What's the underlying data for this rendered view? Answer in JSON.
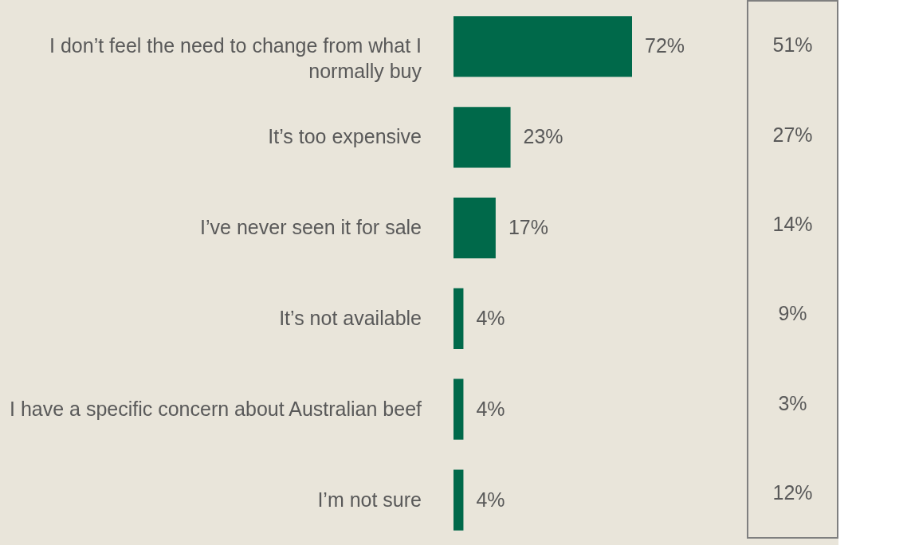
{
  "chart_data": [
    {
      "type": "bar",
      "orientation": "horizontal",
      "categories": [
        "I don’t feel the need to change from what I normally buy",
        "It’s too expensive",
        "I’ve never seen it for sale",
        "It’s not available",
        "I have a specific concern about Australian beef",
        "I’m not sure"
      ],
      "values": [
        72,
        23,
        17,
        4,
        4,
        4
      ],
      "color": "#00694a",
      "value_labels": [
        "72%",
        "23%",
        "17%",
        "4%",
        "4%",
        "4%"
      ]
    },
    {
      "type": "other",
      "values": [
        51,
        27,
        14,
        9,
        3,
        12
      ],
      "value_labels": [
        "51%",
        "27%",
        "14%",
        "9%",
        "3%",
        "12%"
      ]
    }
  ]
}
